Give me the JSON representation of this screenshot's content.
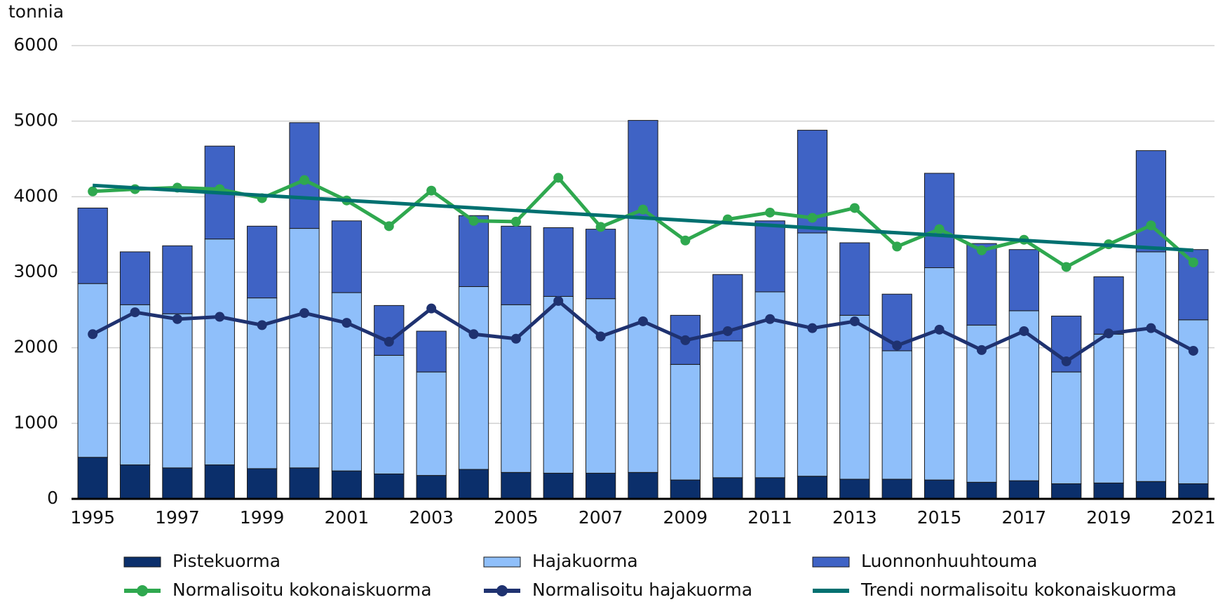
{
  "chart_data": {
    "type": "bar",
    "y_label": "tonnia",
    "categories": [
      "1995",
      null,
      "1997",
      null,
      "1999",
      null,
      "2001",
      null,
      "2003",
      null,
      "2005",
      null,
      "2007",
      null,
      "2009",
      null,
      "2011",
      null,
      "2013",
      null,
      "2015",
      null,
      "2017",
      null,
      "2019",
      null,
      "2021"
    ],
    "ylim": [
      0,
      6000
    ],
    "yticks": [
      0,
      1000,
      2000,
      3000,
      4000,
      5000,
      6000
    ],
    "grid": true,
    "stacked": true,
    "series": [
      {
        "name": "Pistekuorma",
        "type": "bar",
        "color": "#0b2f6b",
        "values": [
          550,
          450,
          410,
          450,
          400,
          410,
          370,
          330,
          310,
          390,
          350,
          340,
          340,
          350,
          250,
          280,
          280,
          300,
          260,
          260,
          250,
          220,
          240,
          200,
          210,
          230,
          200
        ]
      },
      {
        "name": "Hajakuorma",
        "type": "bar",
        "color": "#8fbffa",
        "values": [
          2300,
          2120,
          2040,
          2990,
          2260,
          3170,
          2360,
          1570,
          1370,
          2420,
          2220,
          2340,
          2310,
          3370,
          1530,
          1810,
          2460,
          3220,
          2170,
          1700,
          2810,
          2080,
          2250,
          1480,
          1970,
          3040,
          2170
        ]
      },
      {
        "name": "Luonnonhuuhtouma",
        "type": "bar",
        "color": "#3f63c5",
        "values": [
          1000,
          700,
          900,
          1230,
          950,
          1400,
          950,
          660,
          540,
          940,
          1040,
          910,
          920,
          1290,
          650,
          880,
          940,
          1360,
          960,
          750,
          1250,
          1080,
          810,
          740,
          760,
          1340,
          930
        ]
      },
      {
        "name": "Normalisoitu kokonaiskuorma",
        "type": "line",
        "markers": true,
        "color": "#2fa84f",
        "values": [
          4070,
          4100,
          4120,
          4100,
          3980,
          4220,
          3950,
          3610,
          4080,
          3680,
          3670,
          4250,
          3600,
          3830,
          3420,
          3700,
          3790,
          3720,
          3850,
          3340,
          3570,
          3290,
          3430,
          3070,
          3370,
          3620,
          3130
        ]
      },
      {
        "name": "Normalisoitu hajakuorma",
        "type": "line",
        "markers": true,
        "color": "#1f3270",
        "values": [
          2180,
          2470,
          2380,
          2410,
          2300,
          2460,
          2330,
          2080,
          2520,
          2180,
          2120,
          2620,
          2150,
          2350,
          2100,
          2220,
          2380,
          2260,
          2350,
          2030,
          2240,
          1970,
          2220,
          1820,
          2190,
          2260,
          1960
        ]
      },
      {
        "name": "Trendi normalisoitu kokonaiskuorma",
        "type": "line",
        "markers": false,
        "color": "#007070",
        "values": [
          4150,
          4117,
          4084,
          4051,
          4018,
          3985,
          3952,
          3918,
          3885,
          3852,
          3819,
          3786,
          3753,
          3720,
          3687,
          3654,
          3621,
          3588,
          3555,
          3522,
          3489,
          3455,
          3422,
          3389,
          3356,
          3323,
          3290
        ]
      }
    ]
  }
}
